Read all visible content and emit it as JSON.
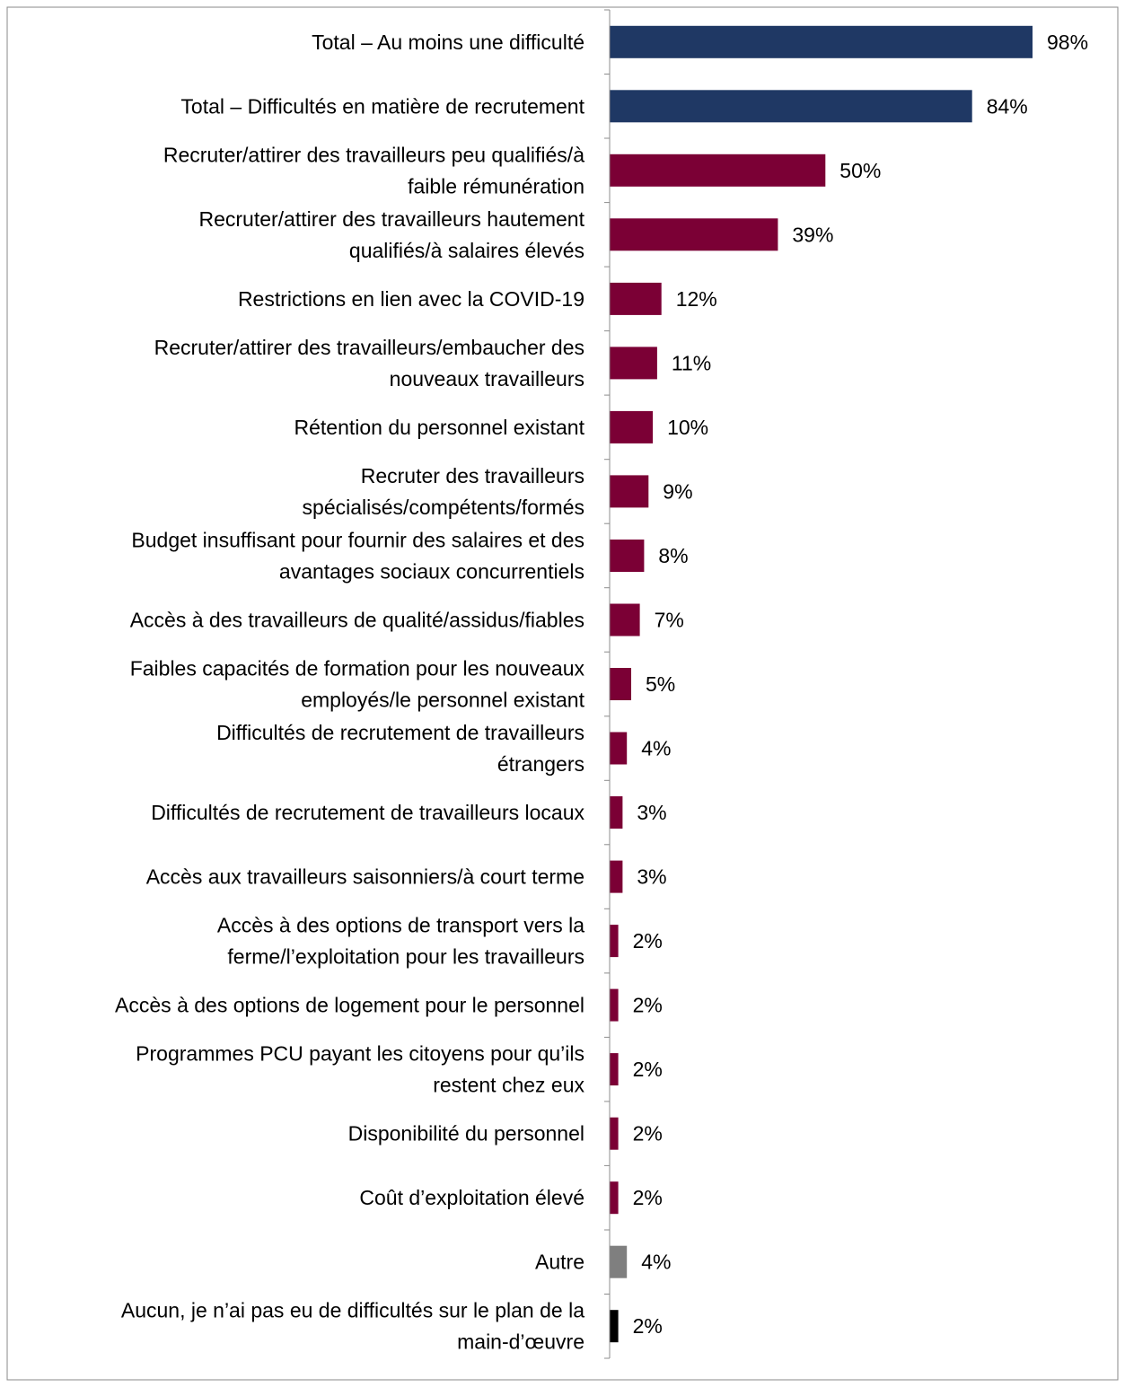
{
  "chart_data": {
    "type": "bar",
    "orientation": "horizontal",
    "value_suffix": "%",
    "xlim": [
      0,
      100
    ],
    "colors": {
      "total": "#1f3864",
      "difficulty": "#7b0035",
      "other": "#7f7f7f",
      "none": "#000000"
    },
    "bars": [
      {
        "label": [
          "Total – Au moins une difficulté"
        ],
        "value": 98,
        "color": "total"
      },
      {
        "label": [
          "Total – Difficultés en matière de recrutement"
        ],
        "value": 84,
        "color": "total"
      },
      {
        "label": [
          "Recruter/attirer des travailleurs peu qualifiés/à",
          "faible rémunération"
        ],
        "value": 50,
        "color": "difficulty"
      },
      {
        "label": [
          "Recruter/attirer des travailleurs hautement",
          "qualifiés/à salaires élevés"
        ],
        "value": 39,
        "color": "difficulty"
      },
      {
        "label": [
          "Restrictions en lien avec la COVID-19"
        ],
        "value": 12,
        "color": "difficulty"
      },
      {
        "label": [
          "Recruter/attirer des travailleurs/embaucher des",
          "nouveaux travailleurs"
        ],
        "value": 11,
        "color": "difficulty"
      },
      {
        "label": [
          "Rétention du personnel existant"
        ],
        "value": 10,
        "color": "difficulty"
      },
      {
        "label": [
          "Recruter des travailleurs",
          "spécialisés/compétents/formés"
        ],
        "value": 9,
        "color": "difficulty"
      },
      {
        "label": [
          "Budget insuffisant pour fournir des salaires et des",
          "avantages sociaux concurrentiels"
        ],
        "value": 8,
        "color": "difficulty"
      },
      {
        "label": [
          "Accès à des travailleurs de qualité/assidus/fiables"
        ],
        "value": 7,
        "color": "difficulty"
      },
      {
        "label": [
          "Faibles capacités de formation pour les nouveaux",
          "employés/le personnel existant"
        ],
        "value": 5,
        "color": "difficulty"
      },
      {
        "label": [
          "Difficultés de recrutement de travailleurs",
          "étrangers"
        ],
        "value": 4,
        "color": "difficulty"
      },
      {
        "label": [
          "Difficultés de recrutement de travailleurs locaux"
        ],
        "value": 3,
        "color": "difficulty"
      },
      {
        "label": [
          "Accès aux travailleurs saisonniers/à court terme"
        ],
        "value": 3,
        "color": "difficulty"
      },
      {
        "label": [
          "Accès à des options de transport vers la",
          "ferme/l’exploitation pour les travailleurs"
        ],
        "value": 2,
        "color": "difficulty"
      },
      {
        "label": [
          "Accès à des options de logement pour le personnel"
        ],
        "value": 2,
        "color": "difficulty"
      },
      {
        "label": [
          "Programmes PCU payant les citoyens pour qu’ils",
          "restent chez eux"
        ],
        "value": 2,
        "color": "difficulty"
      },
      {
        "label": [
          "Disponibilité du personnel "
        ],
        "value": 2,
        "color": "difficulty"
      },
      {
        "label": [
          "Coût d’exploitation élevé"
        ],
        "value": 2,
        "color": "difficulty"
      },
      {
        "label": [
          "Autre"
        ],
        "value": 4,
        "color": "other"
      },
      {
        "label": [
          "Aucun, je n’ai pas eu de difficultés sur le plan de la",
          "main-d’œuvre"
        ],
        "value": 2,
        "color": "none"
      }
    ]
  }
}
